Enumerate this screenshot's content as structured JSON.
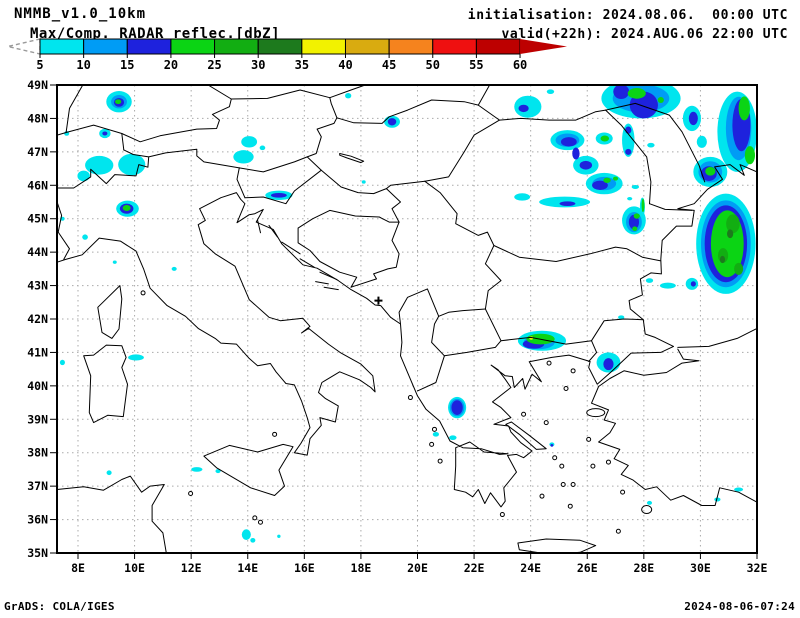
{
  "header": {
    "model_title": "NMMB_v1.0_10km",
    "product_title": "Max/Comp. RADAR reflec.[dbZ]",
    "init_line": "initialisation: 2024.08.06.  00:00 UTC",
    "valid_line": "valid(+22h): 2024.AUG.06 22:00 UTC"
  },
  "colorbar": {
    "levels": [
      "5",
      "10",
      "15",
      "20",
      "25",
      "30",
      "35",
      "40",
      "45",
      "50",
      "55",
      "60"
    ],
    "colors": [
      "#00e5ee",
      "#009cf5",
      "#1e22dd",
      "#0bd414",
      "#12ae12",
      "#1d7a1d",
      "#f2f200",
      "#d9ab10",
      "#f5831e",
      "#ef1010",
      "#bd0000"
    ],
    "below_min_style": "dashed-open-arrow",
    "above_max_color": "#bd0000"
  },
  "map": {
    "lat_labels": [
      "49N",
      "48N",
      "47N",
      "46N",
      "45N",
      "44N",
      "43N",
      "42N",
      "41N",
      "40N",
      "39N",
      "38N",
      "37N",
      "36N",
      "35N"
    ],
    "lon_labels": [
      "8E",
      "10E",
      "12E",
      "14E",
      "16E",
      "18E",
      "20E",
      "22E",
      "24E",
      "26E",
      "28E",
      "30E",
      "32E"
    ],
    "lat_min": 35,
    "lat_max": 49,
    "lon_min": 7.258,
    "lon_max": 32,
    "grid_color": "#aaaaaa",
    "coast_color": "#000000",
    "marker": {
      "lon": 18.62,
      "lat": 42.55,
      "symbol": "+"
    },
    "radar": {
      "level_colors": {
        "1": "#00e5ee",
        "2": "#009cf5",
        "3": "#1e22dd",
        "4": "#0bd414",
        "5": "#12ae12",
        "6": "#1d7a1d",
        "7": "#f2f200"
      },
      "cells": {
        "1": [
          [
            9.45,
            48.5,
            0.45,
            0.32
          ],
          [
            8.95,
            47.55,
            0.2,
            0.14
          ],
          [
            7.6,
            47.55,
            0.09,
            0.07
          ],
          [
            17.55,
            48.68,
            0.11,
            0.08
          ],
          [
            14.05,
            47.3,
            0.28,
            0.17
          ],
          [
            14.52,
            47.12,
            0.1,
            0.07
          ],
          [
            13.85,
            46.85,
            0.36,
            0.2
          ],
          [
            8.75,
            46.6,
            0.5,
            0.28
          ],
          [
            9.9,
            46.62,
            0.48,
            0.32
          ],
          [
            8.2,
            46.28,
            0.22,
            0.16
          ],
          [
            15.1,
            45.7,
            0.48,
            0.14
          ],
          [
            9.75,
            45.3,
            0.4,
            0.24
          ],
          [
            7.45,
            45.0,
            0.08,
            0.06
          ],
          [
            8.25,
            44.45,
            0.1,
            0.08
          ],
          [
            11.4,
            43.5,
            0.09,
            0.06
          ],
          [
            9.3,
            43.7,
            0.07,
            0.05
          ],
          [
            10.05,
            40.85,
            0.28,
            0.09
          ],
          [
            7.45,
            40.7,
            0.09,
            0.08
          ],
          [
            19.1,
            47.9,
            0.28,
            0.18
          ],
          [
            18.1,
            46.1,
            0.07,
            0.05
          ],
          [
            12.2,
            37.5,
            0.2,
            0.07
          ],
          [
            12.95,
            37.45,
            0.09,
            0.06
          ],
          [
            9.1,
            37.4,
            0.09,
            0.07
          ],
          [
            13.95,
            35.55,
            0.16,
            0.16
          ],
          [
            14.18,
            35.38,
            0.09,
            0.07
          ],
          [
            15.1,
            35.5,
            0.06,
            0.05
          ],
          [
            20.65,
            38.55,
            0.11,
            0.07
          ],
          [
            21.25,
            38.45,
            0.13,
            0.07
          ],
          [
            21.4,
            39.35,
            0.32,
            0.32
          ],
          [
            24.4,
            41.35,
            0.85,
            0.3
          ],
          [
            26.75,
            40.7,
            0.42,
            0.3
          ],
          [
            27.2,
            42.05,
            0.11,
            0.06
          ],
          [
            23.9,
            48.35,
            0.48,
            0.33
          ],
          [
            24.7,
            48.8,
            0.13,
            0.07
          ],
          [
            25.3,
            47.35,
            0.6,
            0.3
          ],
          [
            26.6,
            47.4,
            0.3,
            0.18
          ],
          [
            25.95,
            46.6,
            0.45,
            0.28
          ],
          [
            26.6,
            46.05,
            0.65,
            0.32
          ],
          [
            23.7,
            45.65,
            0.28,
            0.11
          ],
          [
            25.2,
            45.5,
            0.9,
            0.16
          ],
          [
            27.65,
            44.95,
            0.42,
            0.42
          ],
          [
            27.7,
            45.95,
            0.13,
            0.06
          ],
          [
            27.5,
            45.6,
            0.09,
            0.05
          ],
          [
            27.95,
            45.35,
            0.09,
            0.28
          ],
          [
            27.45,
            47.35,
            0.22,
            0.5
          ],
          [
            27.9,
            48.6,
            1.4,
            0.6
          ],
          [
            29.7,
            48.0,
            0.32,
            0.38
          ],
          [
            31.3,
            47.6,
            0.7,
            1.2
          ],
          [
            30.35,
            46.4,
            0.6,
            0.45
          ],
          [
            30.05,
            47.3,
            0.18,
            0.18
          ],
          [
            28.25,
            47.2,
            0.13,
            0.07
          ],
          [
            30.9,
            44.25,
            1.05,
            1.5
          ],
          [
            29.7,
            43.05,
            0.22,
            0.18
          ],
          [
            30.9,
            42.9,
            0.13,
            0.1
          ],
          [
            28.85,
            43.0,
            0.28,
            0.09
          ],
          [
            28.2,
            43.15,
            0.13,
            0.07
          ],
          [
            24.75,
            38.25,
            0.09,
            0.06
          ],
          [
            28.2,
            36.5,
            0.09,
            0.06
          ],
          [
            30.6,
            36.6,
            0.11,
            0.06
          ],
          [
            31.35,
            36.9,
            0.16,
            0.06
          ],
          [
            28.35,
            48.75,
            0.18,
            0.07
          ]
        ],
        "2": [
          [
            9.45,
            48.5,
            0.28,
            0.2
          ],
          [
            27.9,
            48.6,
            1.0,
            0.42
          ],
          [
            31.35,
            47.7,
            0.45,
            0.95
          ],
          [
            30.9,
            44.25,
            0.88,
            1.3
          ],
          [
            30.35,
            46.4,
            0.42,
            0.32
          ],
          [
            25.3,
            47.35,
            0.42,
            0.2
          ],
          [
            26.6,
            46.05,
            0.42,
            0.2
          ],
          [
            24.3,
            41.3,
            0.55,
            0.2
          ],
          [
            27.65,
            44.9,
            0.28,
            0.3
          ],
          [
            21.4,
            39.35,
            0.26,
            0.26
          ]
        ],
        "3": [
          [
            9.45,
            48.48,
            0.18,
            0.13
          ],
          [
            8.95,
            47.55,
            0.09,
            0.06
          ],
          [
            19.1,
            47.9,
            0.15,
            0.11
          ],
          [
            15.1,
            45.7,
            0.28,
            0.07
          ],
          [
            9.72,
            45.3,
            0.24,
            0.15
          ],
          [
            21.4,
            39.35,
            0.2,
            0.22
          ],
          [
            24.1,
            41.25,
            0.38,
            0.14
          ],
          [
            26.75,
            40.65,
            0.18,
            0.18
          ],
          [
            25.35,
            47.3,
            0.28,
            0.14
          ],
          [
            25.6,
            46.95,
            0.13,
            0.18
          ],
          [
            25.95,
            46.6,
            0.22,
            0.13
          ],
          [
            26.45,
            46.0,
            0.28,
            0.14
          ],
          [
            25.3,
            45.45,
            0.28,
            0.07
          ],
          [
            27.65,
            44.9,
            0.18,
            0.22
          ],
          [
            28.0,
            48.4,
            0.5,
            0.4
          ],
          [
            27.2,
            48.8,
            0.28,
            0.22
          ],
          [
            29.75,
            48.0,
            0.16,
            0.2
          ],
          [
            31.45,
            47.8,
            0.32,
            0.78
          ],
          [
            30.9,
            44.25,
            0.75,
            1.15
          ],
          [
            30.3,
            46.35,
            0.28,
            0.22
          ],
          [
            29.75,
            43.05,
            0.09,
            0.08
          ],
          [
            27.45,
            47.0,
            0.11,
            0.09
          ],
          [
            27.45,
            47.65,
            0.11,
            0.11
          ],
          [
            23.75,
            48.3,
            0.18,
            0.11
          ],
          [
            24.75,
            38.22,
            0.05,
            0.04
          ]
        ],
        "4": [
          [
            9.42,
            48.5,
            0.11,
            0.07
          ],
          [
            9.72,
            45.32,
            0.14,
            0.09
          ],
          [
            24.35,
            41.4,
            0.5,
            0.16
          ],
          [
            30.95,
            44.25,
            0.58,
            1.0
          ],
          [
            30.35,
            46.42,
            0.18,
            0.13
          ],
          [
            27.75,
            48.75,
            0.32,
            0.16
          ],
          [
            28.6,
            48.55,
            0.11,
            0.09
          ],
          [
            31.55,
            48.3,
            0.2,
            0.36
          ],
          [
            31.75,
            46.9,
            0.18,
            0.27
          ],
          [
            26.62,
            47.4,
            0.15,
            0.09
          ],
          [
            26.7,
            46.15,
            0.13,
            0.08
          ],
          [
            27.0,
            46.2,
            0.09,
            0.06
          ],
          [
            27.75,
            45.08,
            0.11,
            0.08
          ],
          [
            27.68,
            44.7,
            0.09,
            0.07
          ],
          [
            27.97,
            45.4,
            0.05,
            0.2
          ]
        ],
        "5": [
          [
            31.15,
            44.85,
            0.24,
            0.28
          ],
          [
            30.8,
            43.9,
            0.18,
            0.22
          ],
          [
            31.35,
            43.5,
            0.16,
            0.18
          ]
        ],
        "6": [
          [
            31.05,
            44.55,
            0.11,
            0.13
          ],
          [
            30.78,
            43.78,
            0.09,
            0.11
          ]
        ],
        "7": [
          [
            24.02,
            41.43,
            0.07,
            0.05
          ]
        ]
      }
    }
  },
  "footer": {
    "left": "GrADS: COLA/IGES",
    "right": "2024-08-06-07:24"
  }
}
